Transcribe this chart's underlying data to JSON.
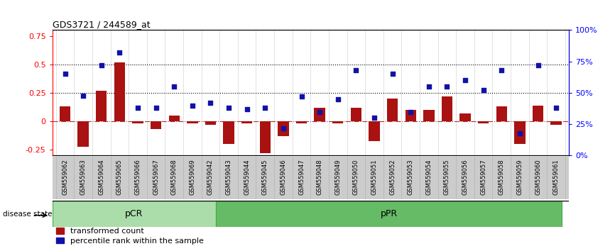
{
  "title": "GDS3721 / 244589_at",
  "samples": [
    "GSM559062",
    "GSM559063",
    "GSM559064",
    "GSM559065",
    "GSM559066",
    "GSM559067",
    "GSM559068",
    "GSM559069",
    "GSM559042",
    "GSM559043",
    "GSM559044",
    "GSM559045",
    "GSM559046",
    "GSM559047",
    "GSM559048",
    "GSM559049",
    "GSM559050",
    "GSM559051",
    "GSM559052",
    "GSM559053",
    "GSM559054",
    "GSM559055",
    "GSM559056",
    "GSM559057",
    "GSM559058",
    "GSM559059",
    "GSM559060",
    "GSM559061"
  ],
  "bar_values": [
    0.13,
    -0.22,
    0.27,
    0.52,
    -0.02,
    -0.07,
    0.05,
    -0.02,
    -0.03,
    -0.2,
    -0.02,
    -0.28,
    -0.13,
    -0.02,
    0.12,
    -0.02,
    0.12,
    -0.17,
    0.2,
    0.1,
    0.1,
    0.22,
    0.07,
    -0.02,
    0.13,
    -0.2,
    0.14,
    -0.03
  ],
  "dot_values": [
    65,
    48,
    72,
    82,
    38,
    38,
    55,
    40,
    42,
    38,
    37,
    38,
    22,
    47,
    35,
    45,
    68,
    30,
    65,
    35,
    55,
    55,
    60,
    52,
    68,
    18,
    72,
    38
  ],
  "pCR_count": 9,
  "pPR_count": 19,
  "bar_color": "#aa1111",
  "dot_color": "#1111aa",
  "pCR_color": "#aaddaa",
  "pPR_color": "#66bb66",
  "ylim_left": [
    -0.3,
    0.8
  ],
  "ylim_right": [
    0,
    100
  ],
  "yticks_left": [
    -0.25,
    0.0,
    0.25,
    0.5,
    0.75
  ],
  "yticks_right": [
    0,
    25,
    50,
    75,
    100
  ],
  "ytick_labels_left": [
    "-0.25",
    "0",
    "0.25",
    "0.5",
    "0.75"
  ],
  "ytick_labels_right": [
    "0%",
    "25%",
    "50%",
    "75%",
    "100%"
  ],
  "hlines": [
    0.25,
    0.5
  ],
  "legend_bar": "transformed count",
  "legend_dot": "percentile rank within the sample",
  "disease_state_label": "disease state",
  "pCR_label": "pCR",
  "pPR_label": "pPR",
  "title_fontsize": 9,
  "tick_label_fontsize": 6,
  "legend_fontsize": 8
}
